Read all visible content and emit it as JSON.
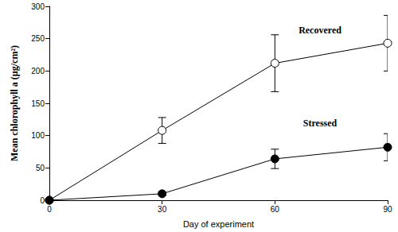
{
  "chart_data": {
    "type": "line",
    "x_label": "Day of experiment",
    "y_label": "Mean chlorophyll a (µg/cm²)",
    "x": [
      0,
      30,
      60,
      90
    ],
    "series": [
      {
        "name": "Recovered",
        "color": "#000000",
        "marker": "circle_open",
        "values": [
          0,
          108,
          212,
          243
        ],
        "errors": [
          0,
          20,
          44,
          43
        ]
      },
      {
        "name": "Stressed",
        "color": "#000000",
        "marker": "circle_filled",
        "values": [
          0,
          10,
          64,
          82
        ],
        "errors": [
          0,
          3,
          15,
          21
        ]
      }
    ],
    "xlim": [
      0,
      90
    ],
    "xticks": [
      0,
      30,
      60,
      90
    ],
    "ylim": [
      0,
      300
    ],
    "yticks": [
      0,
      50,
      100,
      150,
      200,
      250,
      300
    ],
    "grid": false,
    "annotations": [
      {
        "text": "Recovered",
        "x": 72,
        "y": 263
      },
      {
        "text": "Stressed",
        "x": 72,
        "y": 119
      }
    ]
  }
}
